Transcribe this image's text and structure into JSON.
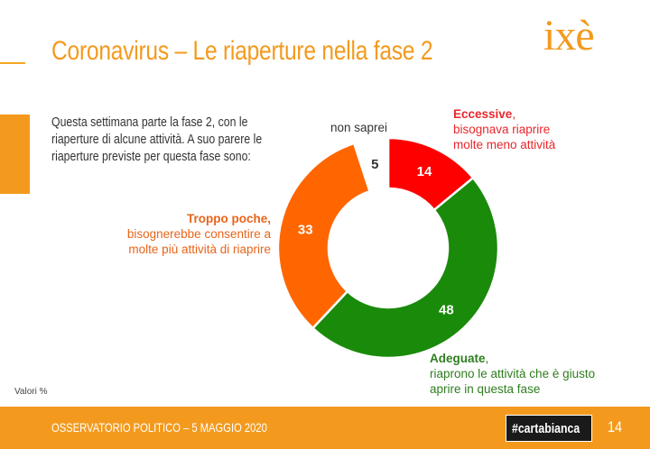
{
  "header": {
    "title": "Coronavirus – Le riaperture nella fase 2",
    "logo": "ixè"
  },
  "question": {
    "lines": [
      "Questa settimana parte la fase 2, con le",
      "riaperture di alcune attività. A suo parere le",
      "riaperture previste per questa fase sono:"
    ]
  },
  "labels": {
    "eccessive": {
      "bold": "Eccessive",
      "rest": ",",
      "line2": "bisognava riaprire",
      "line3": "molte meno attività"
    },
    "troppo": {
      "bold": "Troppo poche,",
      "line2": "bisognerebbe consentire a",
      "line3": "molte più attività di riaprire"
    },
    "adeguate": {
      "bold": "Adeguate",
      "rest": ",",
      "line2": "riaprono le attività che è giusto",
      "line3": "aprire in questa fase"
    },
    "non_saprei": "non saprei"
  },
  "chart_data": {
    "type": "pie",
    "donut": true,
    "unit_note": "Valori %",
    "slices": [
      {
        "label": "Eccessive",
        "value": 14,
        "color": "#ff0000"
      },
      {
        "label": "Adeguate",
        "value": 48,
        "color": "#1a8a0a"
      },
      {
        "label": "Troppo poche",
        "value": 33,
        "color": "#ff6600"
      },
      {
        "label": "non saprei",
        "value": 5,
        "color": "#ffffff"
      }
    ]
  },
  "footer": {
    "text": "OSSERVATORIO POLITICO – 5 MAGGIO 2020",
    "badge": "#cartabianca",
    "page": "14"
  }
}
